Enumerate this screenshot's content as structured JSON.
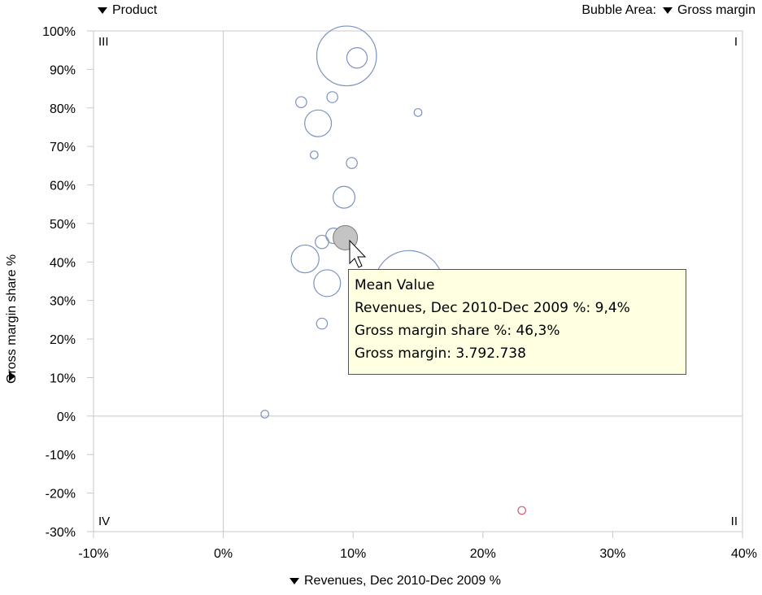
{
  "controls": {
    "product_label": "Product",
    "bubble_area_prefix": "Bubble Area:",
    "bubble_area_label": "Gross margin",
    "x_axis_label": "Revenues, Dec 2010-Dec 2009 %",
    "y_axis_label": "Gross margin share %"
  },
  "quadrants": {
    "top_left": "III",
    "top_right": "I",
    "bottom_left": "IV",
    "bottom_right": "II"
  },
  "tooltip": {
    "title": "Mean Value",
    "line1": "Revenues, Dec 2010-Dec 2009 %: 9,4%",
    "line2": "Gross margin share %: 46,3%",
    "line3": "Gross margin: 3.792.738"
  },
  "colors": {
    "bubble": "#7b93c0",
    "negative": "#d45a6c",
    "mean": "#c4c4c4",
    "axis": "#c8c8c8"
  },
  "chart_data": {
    "type": "scatter",
    "subtype": "bubble",
    "xlabel": "Revenues, Dec 2010-Dec 2009 %",
    "ylabel": "Gross margin share %",
    "xlim": [
      -10,
      40
    ],
    "ylim": [
      -30,
      100
    ],
    "x_ticks": [
      "-10%",
      "0%",
      "10%",
      "20%",
      "30%",
      "40%"
    ],
    "y_ticks": [
      "100%",
      "90%",
      "80%",
      "70%",
      "60%",
      "50%",
      "40%",
      "30%",
      "20%",
      "10%",
      "0%",
      "-10%",
      "-20%",
      "-30%"
    ],
    "points": [
      {
        "x": 9.5,
        "y": 93.5,
        "size": 6.0
      },
      {
        "x": 10.3,
        "y": 93.0,
        "size": 0.7
      },
      {
        "x": 6.0,
        "y": 81.5,
        "size": 0.2
      },
      {
        "x": 8.4,
        "y": 82.8,
        "size": 0.2
      },
      {
        "x": 15.0,
        "y": 78.8,
        "size": 0.1
      },
      {
        "x": 7.3,
        "y": 76.0,
        "size": 1.2
      },
      {
        "x": 7.0,
        "y": 67.8,
        "size": 0.1
      },
      {
        "x": 9.9,
        "y": 65.7,
        "size": 0.2
      },
      {
        "x": 9.3,
        "y": 56.8,
        "size": 0.8
      },
      {
        "x": 7.6,
        "y": 45.2,
        "size": 0.3
      },
      {
        "x": 8.5,
        "y": 46.8,
        "size": 0.4
      },
      {
        "x": 6.3,
        "y": 40.8,
        "size": 1.3
      },
      {
        "x": 8.0,
        "y": 34.5,
        "size": 1.2
      },
      {
        "x": 14.3,
        "y": 34.0,
        "size": 8.0
      },
      {
        "x": 7.6,
        "y": 24.0,
        "size": 0.2
      },
      {
        "x": 3.2,
        "y": 0.5,
        "size": 0.1
      },
      {
        "x": 23.0,
        "y": -24.5,
        "size": 0.1,
        "negative": true
      }
    ],
    "mean_point": {
      "x": 9.4,
      "y": 46.3,
      "gross_margin": 3792738
    }
  }
}
